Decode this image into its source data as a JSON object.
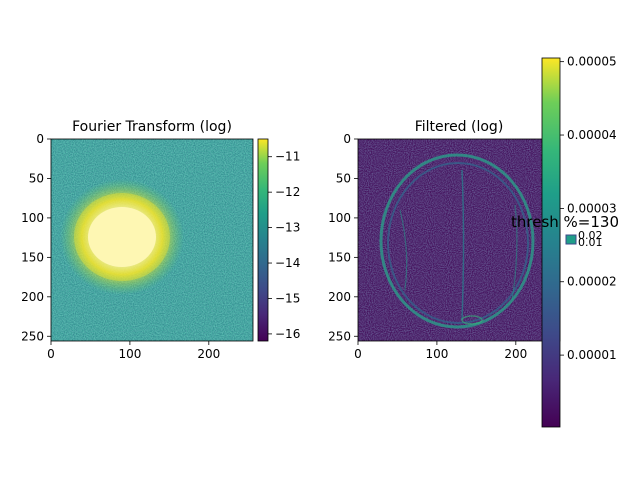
{
  "chart_data": [
    {
      "type": "heatmap",
      "title": "Fourier Transform (log)",
      "x_ticks": [
        "0",
        "100",
        "200"
      ],
      "x_tick_values": [
        0,
        100,
        200
      ],
      "y_ticks": [
        "0",
        "50",
        "100",
        "150",
        "200",
        "250"
      ],
      "y_tick_values": [
        0,
        50,
        100,
        150,
        200,
        250
      ],
      "xlim": [
        0,
        256
      ],
      "ylim": [
        256,
        0
      ],
      "colormap": "viridis",
      "colorbar": {
        "range": [
          -16.2,
          -10.5
        ],
        "ticks": [
          "−11",
          "−12",
          "−13",
          "−14",
          "−15",
          "−16"
        ],
        "tick_values": [
          -11,
          -12,
          -13,
          -14,
          -15,
          -16
        ]
      }
    },
    {
      "type": "heatmap",
      "title": "Filtered (log)",
      "x_ticks": [
        "0",
        "100",
        "200"
      ],
      "x_tick_values": [
        0,
        100,
        200
      ],
      "y_ticks": [
        "0",
        "50",
        "100",
        "150",
        "200",
        "250"
      ],
      "y_tick_values": [
        0,
        50,
        100,
        150,
        200,
        250
      ],
      "xlim": [
        0,
        256
      ],
      "ylim": [
        256,
        0
      ],
      "colormap": "viridis",
      "colorbar": {
        "range": [
          2e-07,
          5.05e-05
        ],
        "ticks": [
          "0.00005",
          "0.00004",
          "0.00003",
          "0.00002",
          "0.00001"
        ],
        "tick_values": [
          5e-05,
          4e-05,
          3e-05,
          2e-05,
          1e-05
        ]
      }
    }
  ],
  "slider": {
    "label": "thresh %=130",
    "value": 130,
    "sub_ticks": [
      "0.02",
      "0.01"
    ]
  },
  "colors": {
    "viridis_low": "#440154",
    "viridis_mid": "#21918c",
    "viridis_high": "#fde725",
    "green_noise": "#35b779",
    "teal_bg": "#3b528b"
  }
}
